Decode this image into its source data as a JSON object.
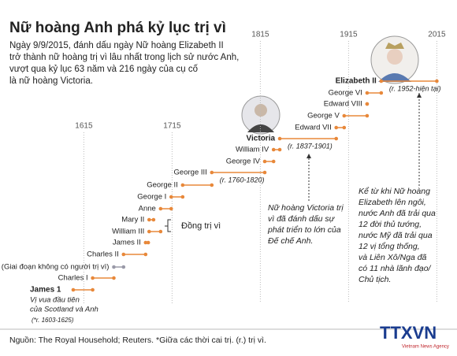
{
  "chart_data": {
    "type": "timeline",
    "title": "Nữ hoàng Anh phá kỷ lục trị vì",
    "subtitle": [
      "Ngày 9/9/2015, đánh dấu ngày Nữ hoàng Elizabeth II",
      "trở thành nữ hoàng trị vì lâu nhất trong lịch sử nước Anh,",
      "vượt qua kỷ lục 63 năm và 216 ngày của cụ cố",
      "là nữ hoàng Victoria."
    ],
    "xlim": [
      1520,
      2070
    ],
    "xticks": [
      1615,
      1715,
      1815,
      1915,
      2015
    ],
    "color": "#e8883a",
    "interregnum_color": "#9a9aa8",
    "reigns": [
      {
        "name": "James 1",
        "start": 1603,
        "end": 1625,
        "bold": true,
        "note": [
          "Vị vua đầu tiên",
          "của Scotland và Anh"
        ],
        "period_label": "(*r. 1603-1625)"
      },
      {
        "name": "Charles I",
        "start": 1625,
        "end": 1649
      },
      {
        "name": "(Giai đoạn không có người trị vì)",
        "start": 1649,
        "end": 1660,
        "interregnum": true
      },
      {
        "name": "Charles II",
        "start": 1660,
        "end": 1685
      },
      {
        "name": "James II",
        "start": 1685,
        "end": 1688
      },
      {
        "name": "William III",
        "start": 1689,
        "end": 1702
      },
      {
        "name": "Mary II",
        "start": 1689,
        "end": 1694
      },
      {
        "name": "Anne",
        "start": 1702,
        "end": 1714
      },
      {
        "name": "George I",
        "start": 1714,
        "end": 1727
      },
      {
        "name": "George II",
        "start": 1727,
        "end": 1760
      },
      {
        "name": "George III",
        "start": 1760,
        "end": 1820,
        "period_label": "(r. 1760-1820)"
      },
      {
        "name": "George IV",
        "start": 1820,
        "end": 1830
      },
      {
        "name": "William IV",
        "start": 1830,
        "end": 1837
      },
      {
        "name": "Victoria",
        "start": 1837,
        "end": 1901,
        "bold": true,
        "period_label": "(r. 1837-1901)"
      },
      {
        "name": "Edward VII",
        "start": 1901,
        "end": 1910
      },
      {
        "name": "George V",
        "start": 1910,
        "end": 1936
      },
      {
        "name": "Edward VIII",
        "start": 1936,
        "end": 1936
      },
      {
        "name": "George VI",
        "start": 1936,
        "end": 1952
      },
      {
        "name": "Elizabeth II",
        "start": 1952,
        "end": 2015,
        "bold": true,
        "period_label": "(r. 1952-hiện tại)"
      }
    ],
    "co_reign_label": "Đồng trị vì",
    "victoria_note": [
      "Nữ hoàng Victoria trị",
      "vì đã đánh dấu sự",
      "phát triển to lớn của",
      "Đế chế Anh."
    ],
    "elizabeth_note": [
      "Kể từ khi Nữ hoàng",
      "Elizabeth lên ngôi,",
      "nước Anh đã trải qua",
      "12 đời thủ tướng,",
      "nước Mỹ đã trải qua",
      "12 vị tổng thống,",
      "và Liên Xô/Nga đã",
      "có 11 nhà lãnh đạo/",
      "Chủ tịch."
    ],
    "source": "Nguồn: The Royal Household; Reuters. *Giữa các thời cai trị.  (r.) trị vì.",
    "logo": "TTXVN",
    "logo_sub": "Vietnam News Agency"
  }
}
